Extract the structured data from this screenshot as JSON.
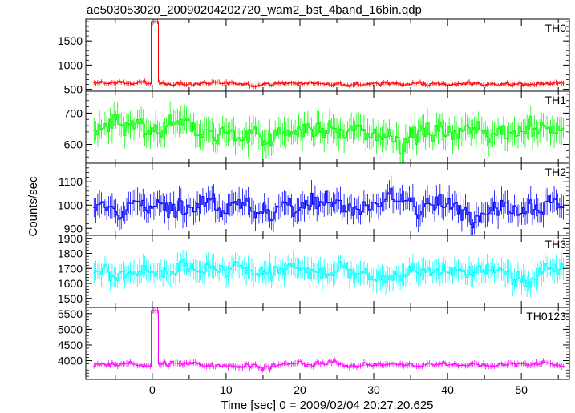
{
  "chart_data": {
    "type": "line",
    "title": "ae503053020_20090204202720_wam2_bst_4band_16bin.qdp",
    "xlabel": "Time [sec] 0 = 2009/02/04 20:27:20.625",
    "ylabel": "Counts/sec",
    "x_range": [
      -9,
      56.5
    ],
    "x_ticks": [
      0,
      10,
      20,
      30,
      40,
      50
    ],
    "grid": false,
    "legend": "none",
    "panels": [
      {
        "name": "TH0",
        "color": "#ff0000",
        "ylim": [
          460,
          1950
        ],
        "y_ticks": [
          500,
          1000,
          1500
        ],
        "baseline": 620,
        "noise": 40,
        "err": 45,
        "flare": {
          "x": 0.2,
          "peak": 1900
        }
      },
      {
        "name": "TH1",
        "color": "#00ff00",
        "ylim": [
          540,
          770
        ],
        "y_ticks": [
          600,
          700
        ],
        "baseline": 640,
        "noise": 35,
        "err": 40,
        "flare": null
      },
      {
        "name": "TH2",
        "color": "#0000ff",
        "ylim": [
          870,
          1180
        ],
        "y_ticks": [
          900,
          1000,
          1100
        ],
        "baseline": 1000,
        "noise": 45,
        "err": 50,
        "flare": null
      },
      {
        "name": "TH3",
        "color": "#00ffff",
        "ylim": [
          1440,
          1920
        ],
        "y_ticks": [
          1500,
          1600,
          1700,
          1800,
          1900
        ],
        "baseline": 1680,
        "noise": 60,
        "err": 70,
        "flare": null
      },
      {
        "name": "TH0123",
        "color": "#ff00ff",
        "ylim": [
          3400,
          5700
        ],
        "y_ticks": [
          4000,
          4500,
          5000,
          5500
        ],
        "baseline": 3880,
        "noise": 80,
        "err": 90,
        "flare": {
          "x": 0.2,
          "peak": 5600
        }
      }
    ]
  }
}
